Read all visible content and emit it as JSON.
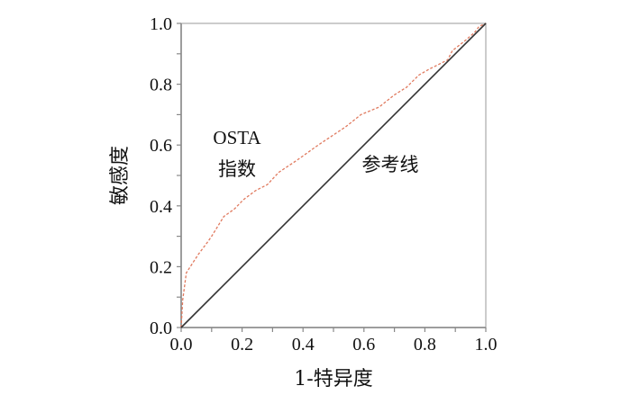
{
  "chart_data": {
    "type": "line",
    "title": "",
    "xlabel": "1-特异度",
    "ylabel": "敏感度",
    "xlim": [
      0,
      1
    ],
    "ylim": [
      0,
      1
    ],
    "xticks": [
      "0.0",
      "0.2",
      "0.4",
      "0.6",
      "0.8",
      "1.0"
    ],
    "yticks": [
      "0.0",
      "0.2",
      "0.4",
      "0.6",
      "0.8",
      "1.0"
    ],
    "grid": false,
    "series": [
      {
        "name": "OSTA指数",
        "style": "dashed",
        "color": "#e07a5f",
        "x": [
          0,
          0.005,
          0.017,
          0.056,
          0.086,
          0.1,
          0.14,
          0.175,
          0.204,
          0.244,
          0.283,
          0.32,
          0.38,
          0.45,
          0.54,
          0.59,
          0.65,
          0.7,
          0.74,
          0.78,
          0.815,
          0.875,
          0.89,
          0.934,
          0.963,
          0.978,
          1
        ],
        "y": [
          0,
          0.09,
          0.18,
          0.24,
          0.28,
          0.3,
          0.365,
          0.39,
          0.42,
          0.45,
          0.47,
          0.51,
          0.55,
          0.6,
          0.66,
          0.7,
          0.725,
          0.765,
          0.79,
          0.83,
          0.85,
          0.88,
          0.91,
          0.945,
          0.97,
          0.99,
          1
        ]
      },
      {
        "name": "参考线",
        "style": "solid",
        "color": "#333333",
        "x": [
          0,
          1
        ],
        "y": [
          0,
          1
        ]
      }
    ],
    "annotations": [
      {
        "text": "OSTA",
        "x": 0.17,
        "y": 0.63
      },
      {
        "text": "指数",
        "x": 0.17,
        "y": 0.53
      },
      {
        "text": "参考线",
        "x": 0.68,
        "y": 0.54
      }
    ]
  }
}
